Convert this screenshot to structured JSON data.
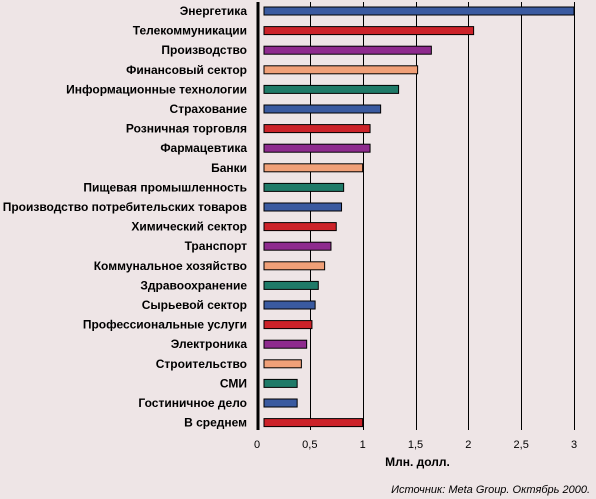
{
  "chart_data": {
    "type": "bar",
    "orientation": "horizontal",
    "categories": [
      "Энергетика",
      "Телекоммуникации",
      "Производство",
      "Финансовый сектор",
      "Информационные технологии",
      "Страхование",
      "Розничная торговля",
      "Фармацевтика",
      "Банки",
      "Пищевая промышленность",
      "Производство потребительских товаров",
      "Химический сектор",
      "Транспорт",
      "Коммунальное хозяйство",
      "Здравоохранение",
      "Сырьевой сектор",
      "Профессиональные услуги",
      "Электроника",
      "Строительство",
      "СМИ",
      "Гостиничное дело",
      "В среднем"
    ],
    "values": [
      3.0,
      2.05,
      1.65,
      1.52,
      1.34,
      1.17,
      1.07,
      1.07,
      1.0,
      0.82,
      0.8,
      0.75,
      0.7,
      0.64,
      0.58,
      0.55,
      0.52,
      0.47,
      0.42,
      0.38,
      0.38,
      1.0
    ],
    "colors": [
      "#3a5aa0",
      "#cc2229",
      "#8e2a8e",
      "#f0a078",
      "#1f7a68",
      "#3a5aa0",
      "#cc2229",
      "#8e2a8e",
      "#f0a078",
      "#1f7a68",
      "#3a5aa0",
      "#cc2229",
      "#8e2a8e",
      "#f0a078",
      "#1f7a68",
      "#3a5aa0",
      "#cc2229",
      "#8e2a8e",
      "#f0a078",
      "#1f7a68",
      "#3a5aa0",
      "#cc2229"
    ],
    "xlabel": "Млн. долл.",
    "xlim": [
      0,
      3
    ],
    "xticks": [
      0,
      0.5,
      1,
      1.5,
      2,
      2.5,
      3
    ],
    "xtick_labels": [
      "0",
      "0,5",
      "1",
      "1,5",
      "2",
      "2,5",
      "3"
    ],
    "grid": true,
    "source": "Источник: Meta Group. Октябрь 2000."
  }
}
